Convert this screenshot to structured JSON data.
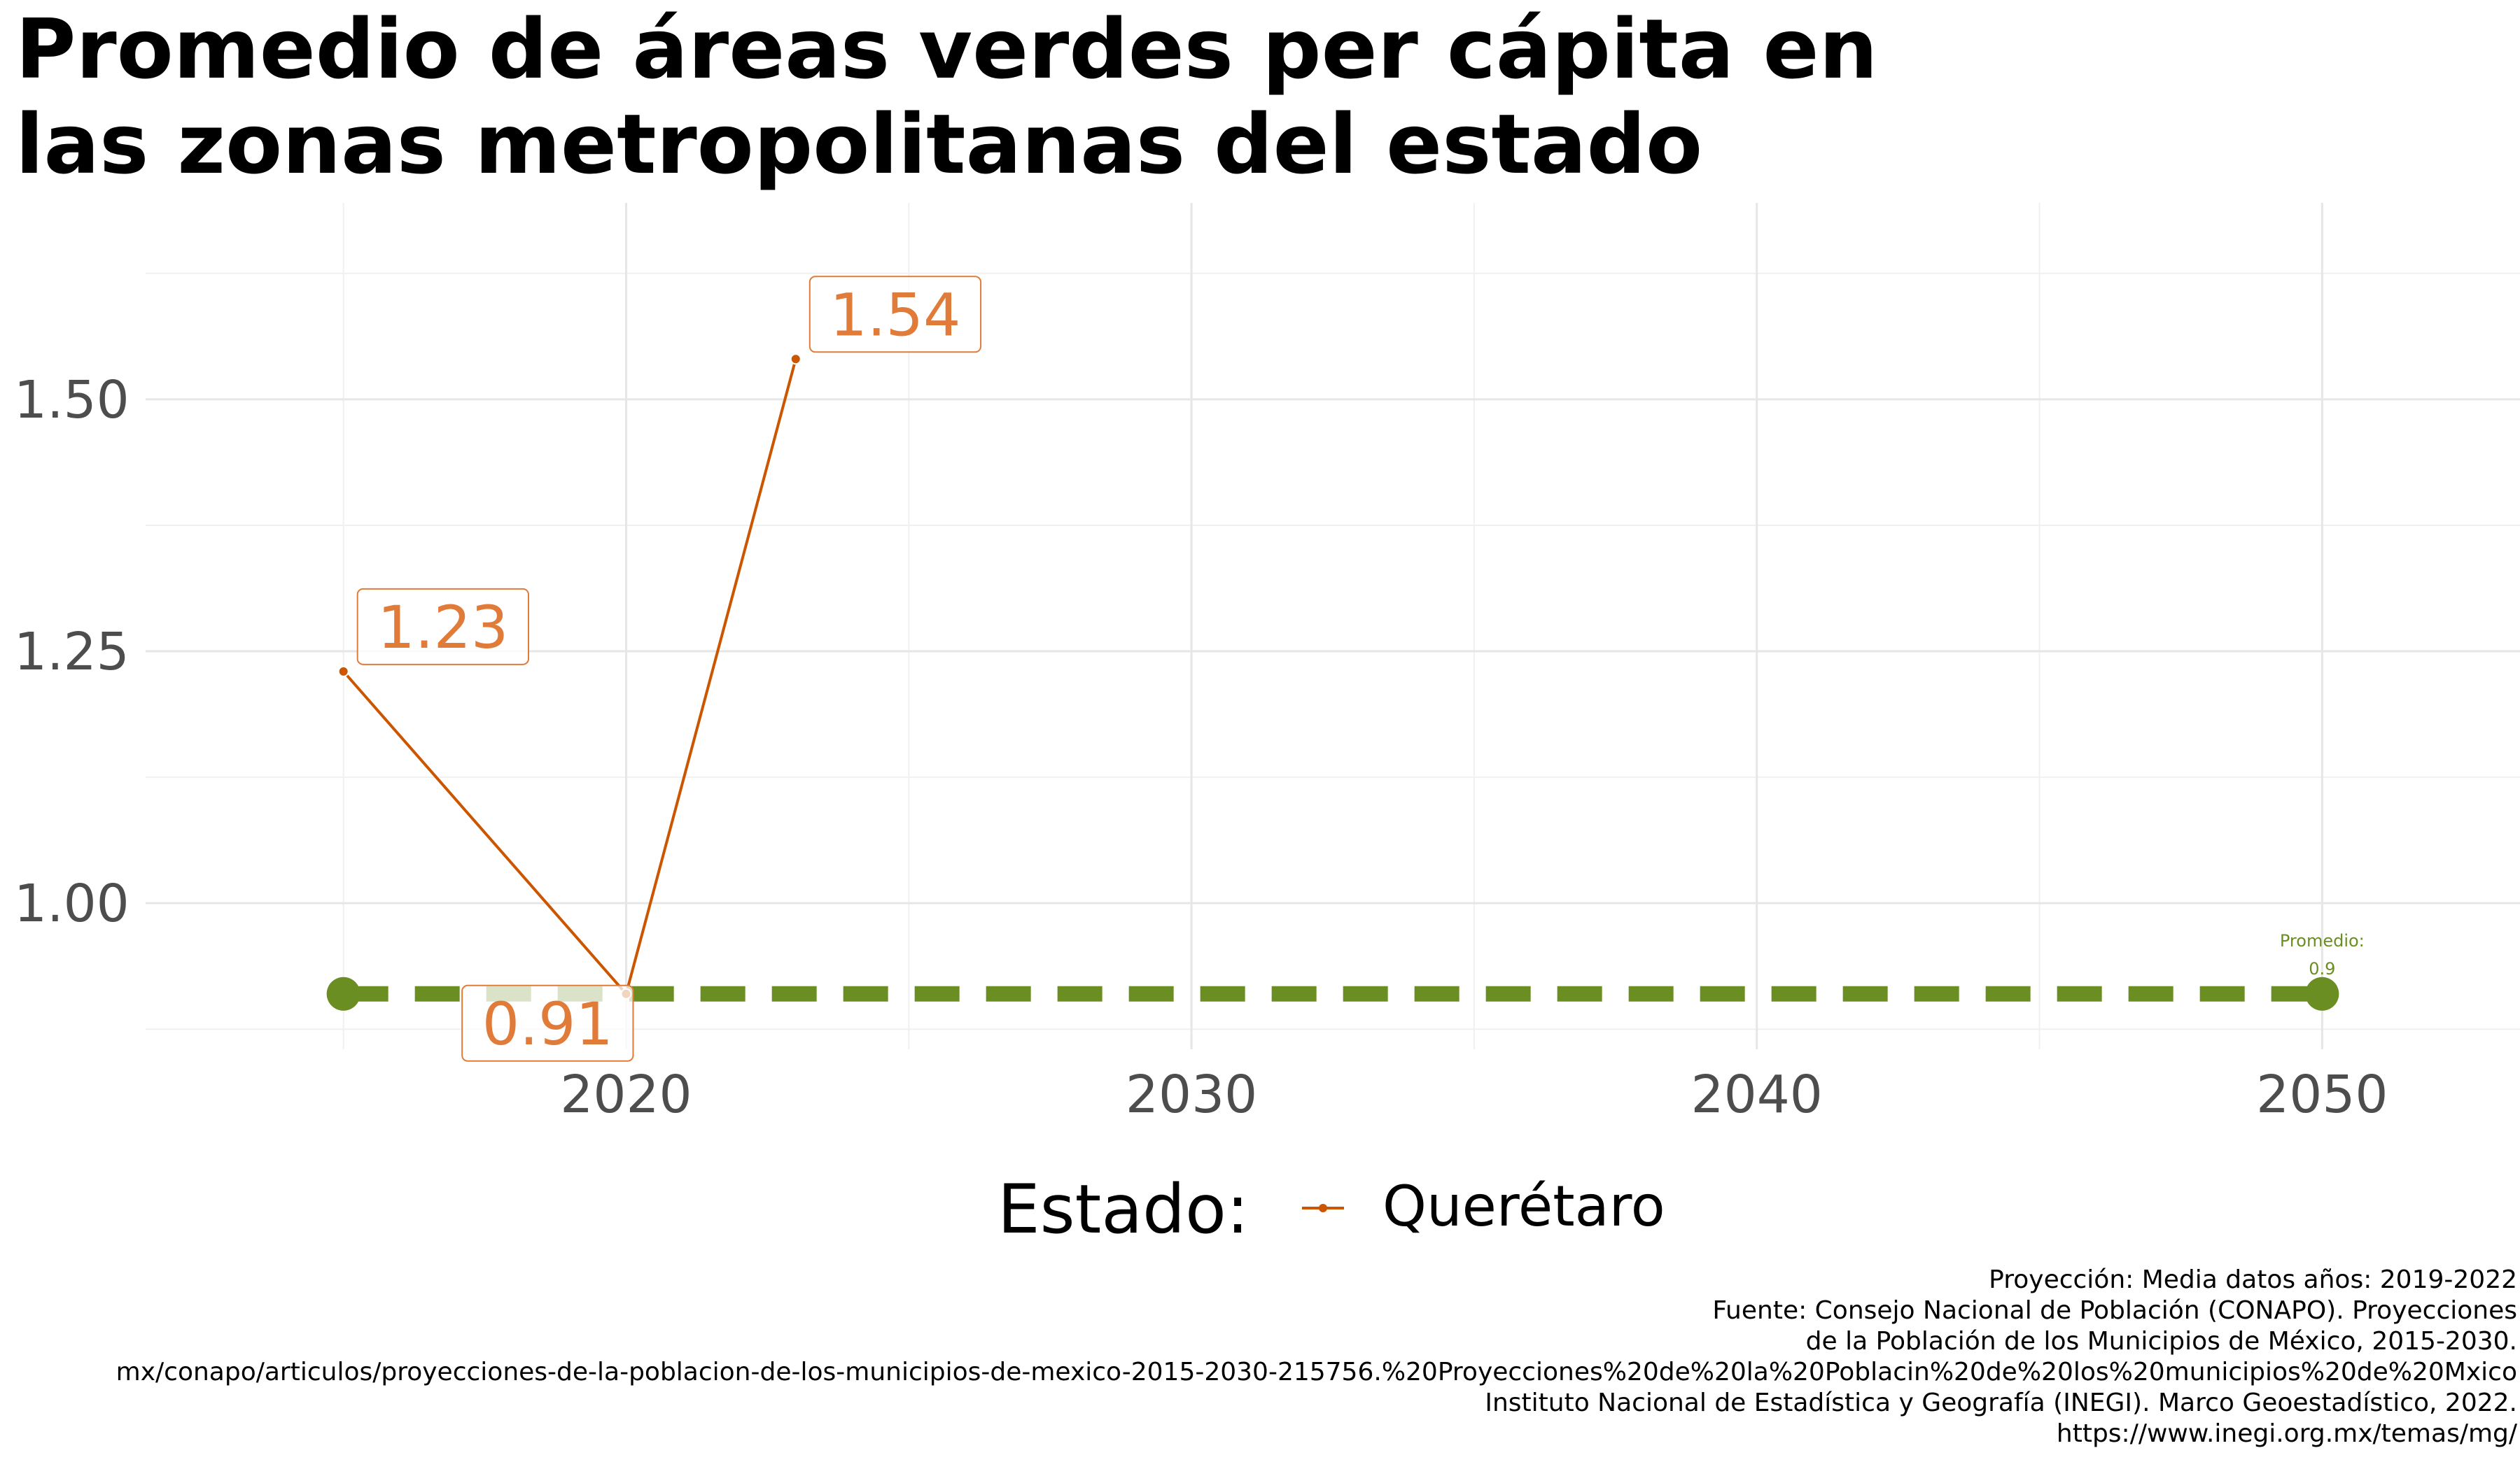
{
  "title_lines": [
    "Promedio de áreas verdes per cápita en",
    "las zonas metropolitanas del estado"
  ],
  "chart_data": {
    "type": "line",
    "title": "Promedio de áreas verdes per cápita en las zonas metropolitanas del estado",
    "xlabel": "",
    "ylabel": "",
    "xlim": [
      2011.5,
      2053.5
    ],
    "ylim": [
      0.855,
      1.695
    ],
    "x_ticks": [
      2020,
      2030,
      2040,
      2050
    ],
    "y_ticks": [
      1.0,
      1.25,
      1.5
    ],
    "y_tick_labels": [
      "1.00",
      "1.25",
      "1.50"
    ],
    "grid": true,
    "series": [
      {
        "name": "Querétaro",
        "color": "#cc5500",
        "label_color": "#e07b39",
        "points": [
          {
            "x": 2015,
            "y": 1.23,
            "label": "1.23"
          },
          {
            "x": 2020,
            "y": 0.91,
            "label": "0.91"
          },
          {
            "x": 2023,
            "y": 1.54,
            "label": "1.54"
          }
        ]
      }
    ],
    "reference_line": {
      "y": 0.91,
      "x_start": 2015,
      "x_end": 2050,
      "color": "#6b8e23",
      "style": "dashed",
      "annotation_line1": "Promedio:",
      "annotation_line2": "0.9"
    },
    "legend": {
      "title": "Estado:",
      "position": "bottom",
      "items": [
        "Querétaro"
      ]
    }
  },
  "caption_lines": [
    "Proyección: Media datos años: 2019-2022",
    "Fuente: Consejo Nacional de Población (CONAPO). Proyecciones",
    "de la Población de los Municipios de México, 2015-2030.",
    "mx/conapo/articulos/proyecciones-de-la-poblacion-de-los-municipios-de-mexico-2015-2030-215756.%20Proyecciones%20de%20la%20Poblacin%20de%20los%20municipios%20de%20Mxico",
    "Instituto Nacional de Estadística y Geografía (INEGI). Marco Geoestadístico, 2022.",
    "https://www.inegi.org.mx/temas/mg/"
  ]
}
